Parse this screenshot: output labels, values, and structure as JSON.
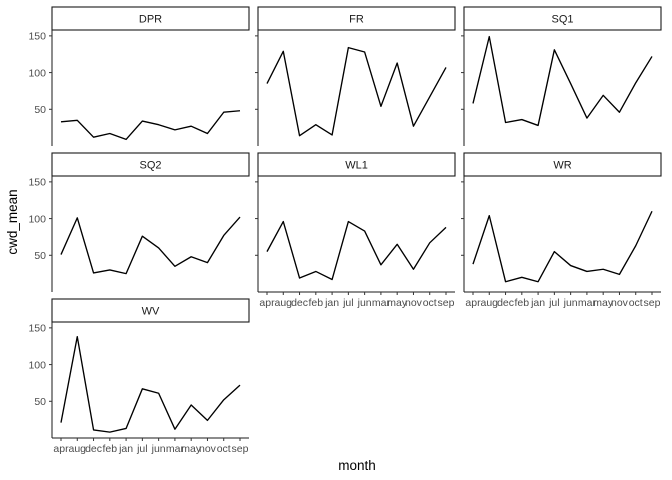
{
  "chart_data": {
    "type": "line",
    "layout": "facet-wrap",
    "xlabel": "month",
    "ylabel": "cwd_mean",
    "categories": [
      "apr",
      "aug",
      "dec",
      "feb",
      "jan",
      "jul",
      "jun",
      "mar",
      "may",
      "nov",
      "oct",
      "sep"
    ],
    "ylim": [
      0,
      158
    ],
    "yticks": [
      50,
      100,
      150
    ],
    "series": [
      {
        "name": "DPR",
        "values": [
          33,
          35,
          12,
          17,
          9,
          34,
          29,
          22,
          27,
          17,
          46,
          48
        ]
      },
      {
        "name": "FR",
        "values": [
          85,
          129,
          14,
          29,
          15,
          134,
          128,
          54,
          113,
          27,
          67,
          107
        ]
      },
      {
        "name": "SQ1",
        "values": [
          58,
          149,
          32,
          36,
          28,
          131,
          85,
          38,
          69,
          46,
          86,
          122
        ]
      },
      {
        "name": "SQ2",
        "values": [
          51,
          101,
          26,
          30,
          25,
          76,
          60,
          35,
          48,
          40,
          77,
          102
        ]
      },
      {
        "name": "WL1",
        "values": [
          55,
          96,
          19,
          28,
          17,
          96,
          83,
          37,
          65,
          31,
          67,
          88
        ]
      },
      {
        "name": "WR",
        "values": [
          38,
          104,
          14,
          20,
          14,
          55,
          36,
          28,
          31,
          24,
          63,
          110
        ]
      },
      {
        "name": "WV",
        "values": [
          21,
          138,
          11,
          8,
          13,
          67,
          61,
          12,
          45,
          24,
          52,
          72
        ]
      }
    ]
  }
}
